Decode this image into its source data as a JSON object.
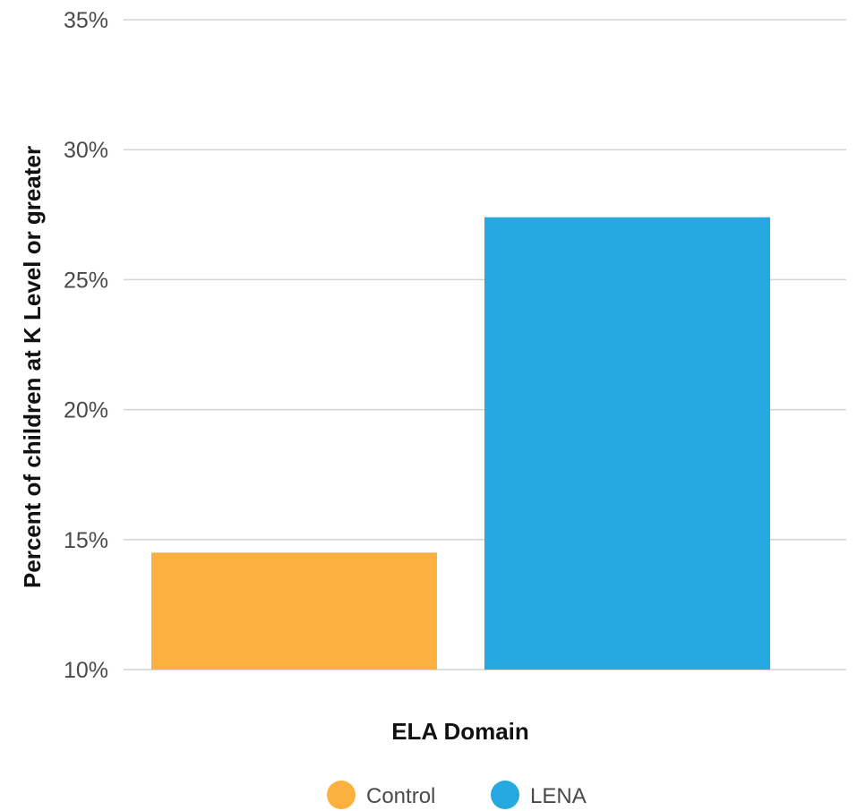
{
  "chart_data": {
    "type": "bar",
    "categories": [
      "ELA Domain"
    ],
    "series": [
      {
        "name": "Control",
        "values": [
          14.5
        ],
        "color": "#FBB040"
      },
      {
        "name": "LENA",
        "values": [
          27.4
        ],
        "color": "#25A9E0"
      }
    ],
    "title": "",
    "xlabel": "ELA Domain",
    "ylabel": "Percent of children at K Level or greater",
    "ylim": [
      10,
      35
    ],
    "yticks": [
      10,
      15,
      20,
      25,
      30,
      35
    ],
    "ytick_labels": [
      "10%",
      "15%",
      "20%",
      "25%",
      "30%",
      "35%"
    ],
    "grid": true,
    "legend_position": "bottom-center"
  }
}
